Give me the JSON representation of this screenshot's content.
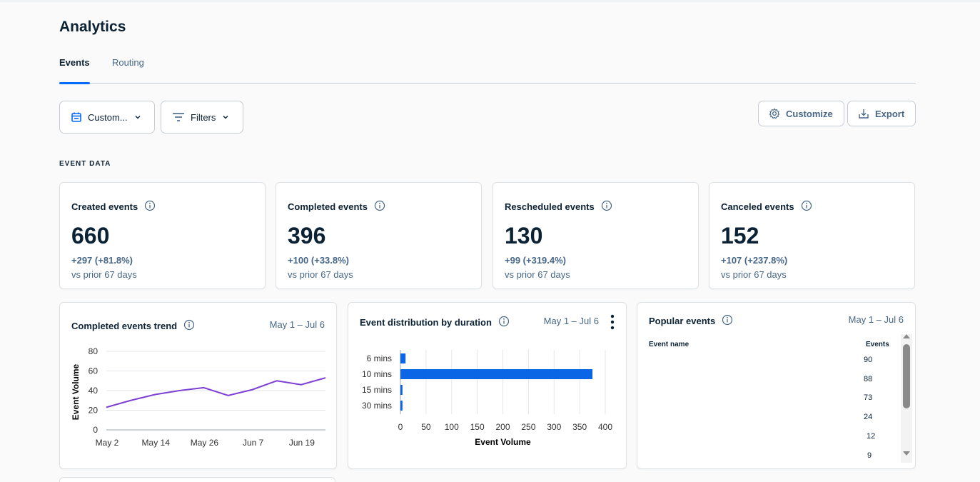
{
  "page": {
    "title": "Analytics"
  },
  "tabs": [
    {
      "label": "Events"
    },
    {
      "label": "Routing"
    }
  ],
  "toolbar": {
    "date_label": "Custom...",
    "filters_label": "Filters",
    "customize_label": "Customize",
    "export_label": "Export"
  },
  "section": {
    "label": "EVENT DATA"
  },
  "stats": [
    {
      "title": "Created events",
      "value": "660",
      "delta": "+297 (+81.8%)",
      "prior": "vs prior 67 days"
    },
    {
      "title": "Completed events",
      "value": "396",
      "delta": "+100 (+33.8%)",
      "prior": "vs prior 67 days"
    },
    {
      "title": "Rescheduled events",
      "value": "130",
      "delta": "+99 (+319.4%)",
      "prior": "vs prior 67 days"
    },
    {
      "title": "Canceled events",
      "value": "152",
      "delta": "+107 (+237.8%)",
      "prior": "vs prior 67 days"
    }
  ],
  "trend": {
    "title": "Completed events trend",
    "range": "May 1 – Jul 6"
  },
  "distribution": {
    "title": "Event distribution by duration",
    "range": "May 1 – Jul 6"
  },
  "popular": {
    "title": "Popular events",
    "range": "May 1 – Jul 6",
    "col_name": "Event name",
    "col_events": "Events",
    "values": [
      "90",
      "88",
      "73",
      "24",
      "12",
      "9"
    ]
  },
  "colors": {
    "accent": "#006bff",
    "bar": "#0a66e4",
    "line": "#7e3fd4"
  },
  "chart_data": [
    {
      "type": "line",
      "title": "Completed events trend",
      "xlabel": "",
      "ylabel": "Event Volume",
      "x_ticks": [
        "May 2",
        "May 14",
        "May 26",
        "Jun 7",
        "Jun 19"
      ],
      "y_ticks": [
        0,
        20,
        40,
        60,
        80
      ],
      "ylim": [
        0,
        80
      ],
      "grid": true,
      "series": [
        {
          "name": "Completed events",
          "values": [
            23,
            30,
            36,
            40,
            43,
            35,
            41,
            50,
            46,
            53
          ]
        }
      ]
    },
    {
      "type": "bar",
      "orientation": "horizontal",
      "title": "Event distribution by duration",
      "categories": [
        "6 mins",
        "10 mins",
        "15 mins",
        "30 mins"
      ],
      "values": [
        10,
        375,
        4,
        4
      ],
      "xlabel": "Event Volume",
      "x_ticks": [
        0,
        50,
        100,
        150,
        200,
        250,
        300,
        350,
        400
      ],
      "xlim": [
        0,
        400
      ],
      "grid": true
    }
  ]
}
